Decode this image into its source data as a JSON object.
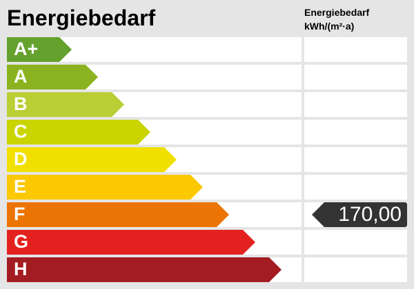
{
  "title": "Energiebedarf",
  "column_title_line1": "Energiebedarf",
  "column_title_line2": "kWh/(m²·a)",
  "chart_data": {
    "type": "bar",
    "categories": [
      "A+",
      "A",
      "B",
      "C",
      "D",
      "E",
      "F",
      "G",
      "H"
    ],
    "colors": [
      "#64a12d",
      "#8bb31f",
      "#b9cf35",
      "#cad400",
      "#f1df00",
      "#fcc800",
      "#ec7404",
      "#e3221f",
      "#a31c22"
    ],
    "selected_class": "F",
    "value_label": "170,00",
    "value_badge_color": "#333333"
  }
}
